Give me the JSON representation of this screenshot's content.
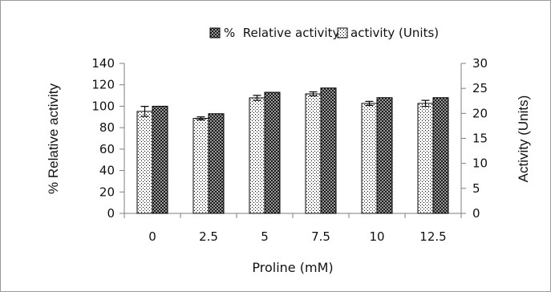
{
  "chart_data": {
    "type": "bar",
    "categories": [
      "0",
      "2.5",
      "5",
      "7.5",
      "10",
      "12.5"
    ],
    "series": [
      {
        "name": "activity (Units)",
        "axis": "right",
        "pattern": "dots",
        "values": [
          20.4,
          19.0,
          23.1,
          23.9,
          22.0,
          22.0
        ],
        "error": [
          1.0,
          0.3,
          0.5,
          0.4,
          0.4,
          0.6
        ]
      },
      {
        "name": "% Relative activity",
        "axis": "left",
        "pattern": "checker",
        "values": [
          100,
          93,
          113,
          117,
          108,
          108
        ]
      }
    ],
    "legend": [
      {
        "marker": "checker",
        "label": "%  Relative activity"
      },
      {
        "marker": "dots",
        "label": "activity (Units)"
      }
    ],
    "legend_position": "top",
    "xlabel": "Proline (mM)",
    "ylabel_left": "% Relative activity",
    "ylabel_right": "Activity (Units)",
    "ylim_left": [
      0,
      140
    ],
    "yticks_left": [
      0,
      20,
      40,
      60,
      80,
      100,
      120,
      140
    ],
    "ylim_right": [
      0,
      30
    ],
    "yticks_right": [
      0,
      5,
      10,
      15,
      20,
      25,
      30
    ],
    "grid": false,
    "colors": {
      "axis": "#7f7f7f",
      "bar_fill": "#ffffff",
      "bar_ink": "#000000",
      "dark_bar": "#1a1a1a"
    }
  }
}
